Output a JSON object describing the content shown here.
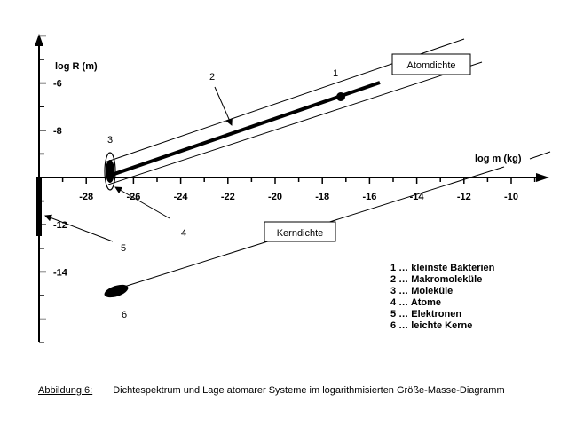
{
  "axes": {
    "y_label": "log R (m)",
    "x_label": "log m (kg)",
    "x_ticks": [
      "-28",
      "-26",
      "-24",
      "-22",
      "-20",
      "-18",
      "-16",
      "-14",
      "-12",
      "-10"
    ],
    "y_ticks": [
      "-6",
      "-8",
      "-12",
      "-14"
    ]
  },
  "boxes": {
    "atom": "Atomdichte",
    "kern": "Kerndichte"
  },
  "markers": [
    "1",
    "2",
    "3",
    "4",
    "5",
    "6"
  ],
  "legend": [
    "1 … kleinste Bakterien",
    "2 … Makromoleküle",
    "3 … Moleküle",
    "4 … Atome",
    "5 … Elektronen",
    "6 … leichte Kerne"
  ],
  "caption": {
    "label": "Abbildung 6:",
    "text": "Dichtespektrum und Lage atomarer Systeme im logarithmisierten Größe-Masse-Diagramm"
  }
}
